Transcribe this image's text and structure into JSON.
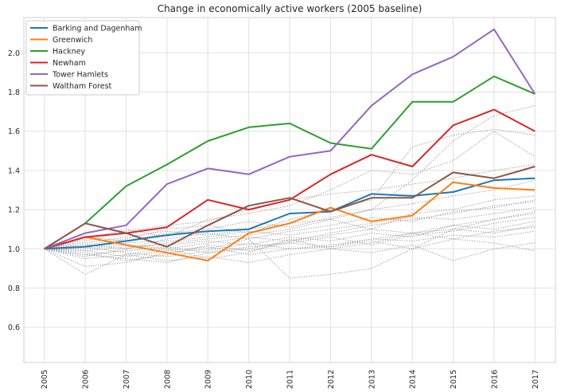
{
  "chart_data": {
    "type": "line",
    "title": "Change in economically active workers (2005 baseline)",
    "xlabel": "",
    "ylabel": "",
    "x": [
      "2005",
      "2006",
      "2007",
      "2008",
      "2009",
      "2010",
      "2011",
      "2012",
      "2013",
      "2014",
      "2015",
      "2016",
      "2017"
    ],
    "ylim": [
      0.42,
      2.18
    ],
    "yticks": [
      "0.6",
      "0.8",
      "1.0",
      "1.2",
      "1.4",
      "1.6",
      "1.8",
      "2.0"
    ],
    "grid": true,
    "legend_position": "top-left",
    "series": [
      {
        "name": "Barking and Dagenham",
        "color": "#1f77b4",
        "values": [
          1.0,
          1.01,
          1.04,
          1.07,
          1.09,
          1.1,
          1.18,
          1.19,
          1.28,
          1.27,
          1.29,
          1.35,
          1.36
        ]
      },
      {
        "name": "Greenwich",
        "color": "#ff7f0e",
        "values": [
          1.0,
          1.06,
          1.02,
          0.98,
          0.94,
          1.08,
          1.13,
          1.21,
          1.14,
          1.17,
          1.34,
          1.31,
          1.3
        ]
      },
      {
        "name": "Hackney",
        "color": "#2ca02c",
        "values": [
          1.0,
          1.13,
          1.32,
          1.43,
          1.55,
          1.62,
          1.64,
          1.54,
          1.51,
          1.75,
          1.75,
          1.88,
          1.79
        ]
      },
      {
        "name": "Newham",
        "color": "#d62728",
        "values": [
          1.0,
          1.06,
          1.08,
          1.11,
          1.25,
          1.2,
          1.25,
          1.38,
          1.48,
          1.42,
          1.63,
          1.71,
          1.6
        ]
      },
      {
        "name": "Tower Hamlets",
        "color": "#9467bd",
        "values": [
          1.0,
          1.08,
          1.12,
          1.33,
          1.41,
          1.38,
          1.47,
          1.5,
          1.73,
          1.89,
          1.98,
          2.12,
          1.79
        ]
      },
      {
        "name": "Waltham Forest",
        "color": "#8c564b",
        "values": [
          1.0,
          1.13,
          1.08,
          1.01,
          1.12,
          1.22,
          1.26,
          1.19,
          1.26,
          1.26,
          1.39,
          1.36,
          1.42
        ]
      }
    ],
    "background_series": [
      [
        1.0,
        0.87,
        0.97,
        1.0,
        0.95,
        0.98,
        1.05,
        1.0,
        1.03,
        1.08,
        1.1,
        1.15,
        1.18
      ],
      [
        1.0,
        0.91,
        0.93,
        0.98,
        1.0,
        1.05,
        0.85,
        0.87,
        0.9,
        1.0,
        1.1,
        1.08,
        1.12
      ],
      [
        1.0,
        1.02,
        1.05,
        1.1,
        1.12,
        1.08,
        1.15,
        1.2,
        1.25,
        1.52,
        1.58,
        1.61,
        1.58
      ],
      [
        1.0,
        0.96,
        1.0,
        1.03,
        1.05,
        1.07,
        1.1,
        1.15,
        1.2,
        1.35,
        1.55,
        1.68,
        1.73
      ],
      [
        1.0,
        1.05,
        1.1,
        1.06,
        1.15,
        1.18,
        1.22,
        1.3,
        1.4,
        1.38,
        1.45,
        1.6,
        1.47
      ],
      [
        1.0,
        0.97,
        0.95,
        0.93,
        0.98,
        1.0,
        1.04,
        1.08,
        1.12,
        1.15,
        1.18,
        1.22,
        1.24
      ],
      [
        1.0,
        1.03,
        1.06,
        1.09,
        1.07,
        1.1,
        1.13,
        1.15,
        1.1,
        1.18,
        1.2,
        1.25,
        1.27
      ],
      [
        1.0,
        0.99,
        1.01,
        1.02,
        1.04,
        1.02,
        1.06,
        1.04,
        1.08,
        1.06,
        1.12,
        1.1,
        1.14
      ],
      [
        1.0,
        1.01,
        0.98,
        0.96,
        0.99,
        1.03,
        1.0,
        1.02,
        1.05,
        1.08,
        1.05,
        1.09,
        1.11
      ],
      [
        1.0,
        1.04,
        1.09,
        1.12,
        1.14,
        1.2,
        1.25,
        1.28,
        1.3,
        1.33,
        1.36,
        1.4,
        1.43
      ],
      [
        1.0,
        0.98,
        0.94,
        0.97,
        1.02,
        0.99,
        1.03,
        1.06,
        1.02,
        1.07,
        1.09,
        1.13,
        1.16
      ],
      [
        1.0,
        1.02,
        1.0,
        1.05,
        1.08,
        1.05,
        1.09,
        1.12,
        1.16,
        1.14,
        1.19,
        1.21,
        1.25
      ],
      [
        1.0,
        0.95,
        0.97,
        0.94,
        0.96,
        0.93,
        0.97,
        1.0,
        0.98,
        1.02,
        0.94,
        1.0,
        1.03
      ],
      [
        1.0,
        1.0,
        1.02,
        1.0,
        1.03,
        1.06,
        1.04,
        1.07,
        1.1,
        1.08,
        1.12,
        1.15,
        1.19
      ],
      [
        1.0,
        1.06,
        1.04,
        1.08,
        1.1,
        1.14,
        1.11,
        1.16,
        1.2,
        1.23,
        1.27,
        1.3,
        1.35
      ],
      [
        1.0,
        0.99,
        0.96,
        0.99,
        1.01,
        0.97,
        1.0,
        1.01,
        1.04,
        1.0,
        1.05,
        1.03,
        0.99
      ],
      [
        1.0,
        1.01,
        1.03,
        1.04,
        1.06,
        1.09,
        1.07,
        1.1,
        1.13,
        1.16,
        1.15,
        1.18,
        1.21
      ],
      [
        1.0,
        0.97,
        0.99,
        1.01,
        0.98,
        1.01,
        1.03,
        1.01,
        1.05,
        1.04,
        1.07,
        1.06,
        1.09
      ]
    ]
  }
}
